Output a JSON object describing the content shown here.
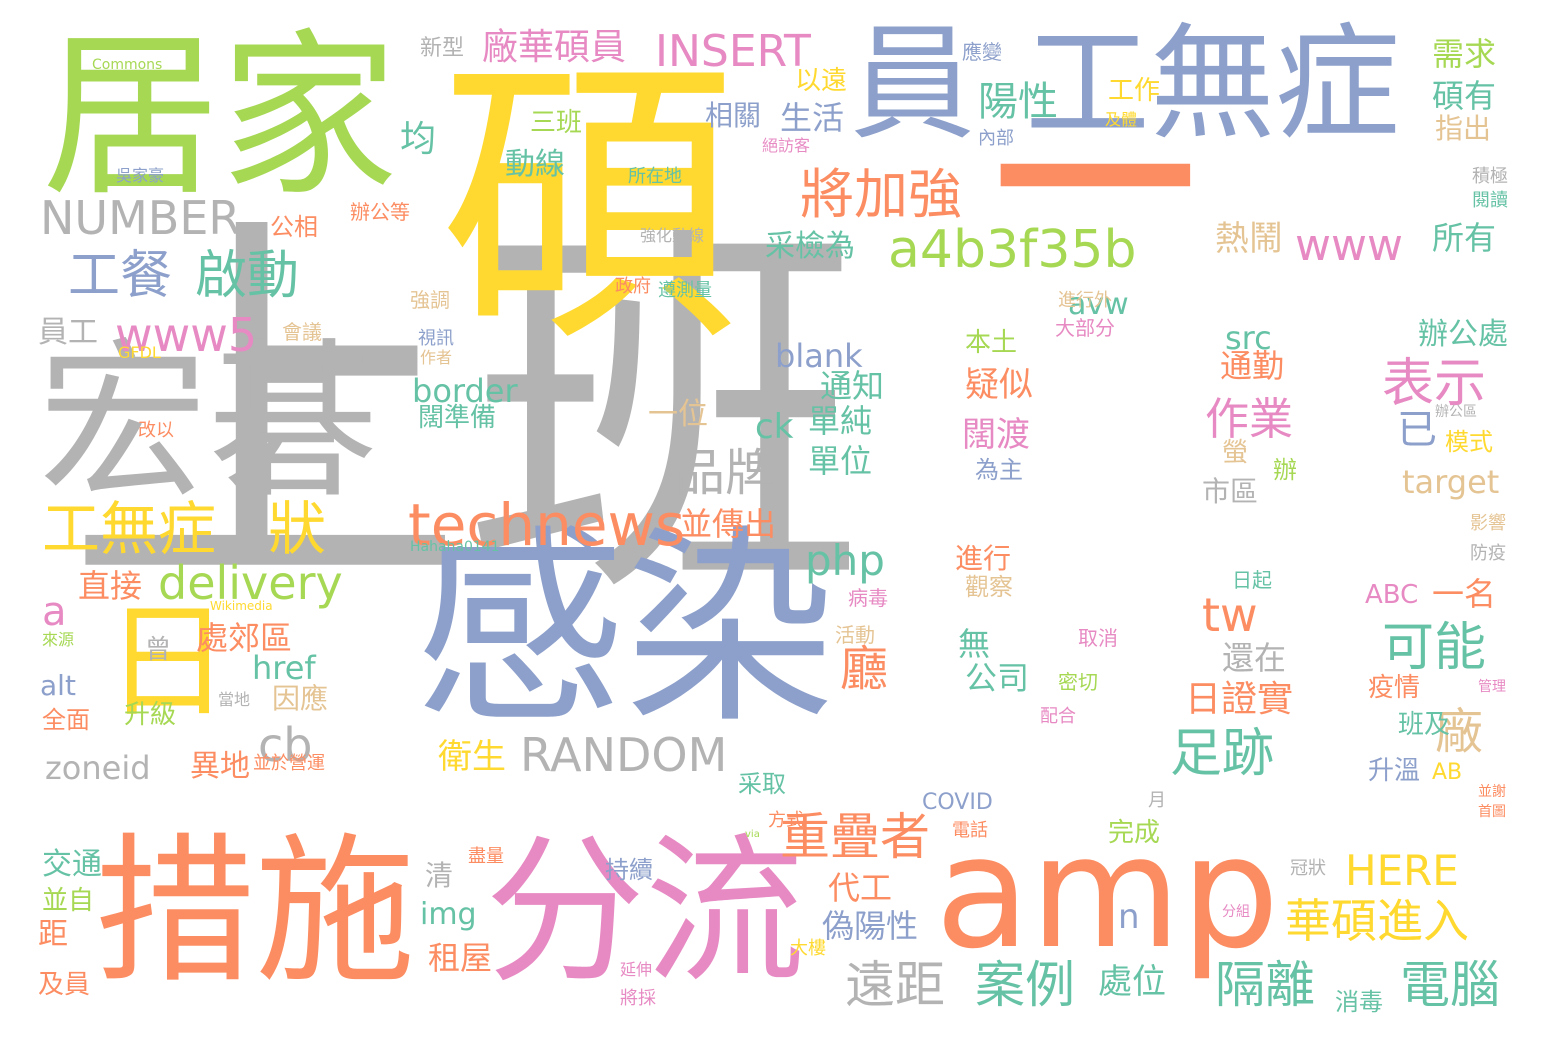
{
  "palette": {
    "gray": "#b3b3b3",
    "yellow": "#ffd92f",
    "blue": "#8da0cb",
    "green": "#a6d854",
    "orange": "#fc8d62",
    "pink": "#e78ac3",
    "teal": "#66c2a5",
    "tan": "#e5c494"
  },
  "words": [
    {
      "text": "上班",
      "color": "gray"
    },
    {
      "text": "碩",
      "color": "yellow"
    },
    {
      "text": "感染",
      "color": "blue"
    },
    {
      "text": "一",
      "color": "orange"
    },
    {
      "text": "居家",
      "color": "green"
    },
    {
      "text": "宏碁",
      "color": "gray"
    },
    {
      "text": "措施",
      "color": "orange"
    },
    {
      "text": "分流",
      "color": "pink"
    },
    {
      "text": "amp",
      "color": "orange"
    },
    {
      "text": "員",
      "color": "blue"
    },
    {
      "text": "工無症",
      "color": "blue"
    },
    {
      "text": "日",
      "color": "yellow"
    },
    {
      "text": "technews",
      "color": "orange"
    },
    {
      "text": "a4b3f35b",
      "color": "green"
    },
    {
      "text": "將加強",
      "color": "orange"
    },
    {
      "text": "工無症",
      "color": "yellow"
    },
    {
      "text": "狀",
      "color": "yellow"
    },
    {
      "text": "NUMBER",
      "color": "gray"
    },
    {
      "text": "www5",
      "color": "pink"
    },
    {
      "text": "工餐",
      "color": "blue"
    },
    {
      "text": "啟動",
      "color": "teal"
    },
    {
      "text": "delivery",
      "color": "green"
    },
    {
      "text": "RANDOM",
      "color": "gray"
    },
    {
      "text": "INSERT",
      "color": "pink"
    },
    {
      "text": "廠華碩員",
      "color": "pink"
    },
    {
      "text": "www",
      "color": "pink"
    },
    {
      "text": "品牌",
      "color": "gray"
    },
    {
      "text": "表示",
      "color": "pink"
    },
    {
      "text": "足跡",
      "color": "teal"
    },
    {
      "text": "可能",
      "color": "teal"
    },
    {
      "text": "重疊者",
      "color": "orange"
    },
    {
      "text": "遠距",
      "color": "gray"
    },
    {
      "text": "案例",
      "color": "teal"
    },
    {
      "text": "華碩進入",
      "color": "yellow"
    },
    {
      "text": "電腦",
      "color": "teal"
    },
    {
      "text": "隔離",
      "color": "teal"
    },
    {
      "text": "HERE",
      "color": "yellow"
    },
    {
      "text": "陽性",
      "color": "teal"
    },
    {
      "text": "需求",
      "color": "green"
    },
    {
      "text": "碩有",
      "color": "teal"
    },
    {
      "text": "php",
      "color": "teal"
    },
    {
      "text": "tw",
      "color": "orange"
    },
    {
      "text": "cb",
      "color": "gray"
    },
    {
      "text": "a",
      "color": "pink"
    },
    {
      "text": "zoneid",
      "color": "gray"
    },
    {
      "text": "作業",
      "color": "pink"
    },
    {
      "text": "所有",
      "color": "teal"
    },
    {
      "text": "生活",
      "color": "blue"
    },
    {
      "text": "均",
      "color": "teal"
    },
    {
      "text": "動線",
      "color": "teal"
    },
    {
      "text": "相關",
      "color": "blue"
    },
    {
      "text": "三班",
      "color": "green"
    },
    {
      "text": "以遠",
      "color": "yellow"
    },
    {
      "text": "新型",
      "color": "gray"
    },
    {
      "text": "熱鬧",
      "color": "tan"
    },
    {
      "text": "采檢為",
      "color": "teal"
    },
    {
      "text": "avw",
      "color": "teal"
    },
    {
      "text": "src",
      "color": "teal"
    },
    {
      "text": "本土",
      "color": "green"
    },
    {
      "text": "疑似",
      "color": "orange"
    },
    {
      "text": "闊渡",
      "color": "pink"
    },
    {
      "text": "為主",
      "color": "blue"
    },
    {
      "text": "通知",
      "color": "teal"
    },
    {
      "text": "單純",
      "color": "teal"
    },
    {
      "text": "單位",
      "color": "teal"
    },
    {
      "text": "一位",
      "color": "tan"
    },
    {
      "text": "blank",
      "color": "blue"
    },
    {
      "text": "border",
      "color": "teal"
    },
    {
      "text": "闊準備",
      "color": "teal"
    },
    {
      "text": "ck",
      "color": "teal"
    },
    {
      "text": "並傳出",
      "color": "orange"
    },
    {
      "text": "直接",
      "color": "orange"
    },
    {
      "text": "處郊區",
      "color": "orange"
    },
    {
      "text": "href",
      "color": "teal"
    },
    {
      "text": "alt",
      "color": "blue"
    },
    {
      "text": "因應",
      "color": "tan"
    },
    {
      "text": "異地",
      "color": "orange"
    },
    {
      "text": "全面",
      "color": "orange"
    },
    {
      "text": "升級",
      "color": "green"
    },
    {
      "text": "曾",
      "color": "gray"
    },
    {
      "text": "廳",
      "color": "orange"
    },
    {
      "text": "衛生",
      "color": "yellow"
    },
    {
      "text": "日證實",
      "color": "orange"
    },
    {
      "text": "還在",
      "color": "gray"
    },
    {
      "text": "廠",
      "color": "tan"
    },
    {
      "text": "已",
      "color": "blue"
    },
    {
      "text": "通勤",
      "color": "orange"
    },
    {
      "text": "市區",
      "color": "gray"
    },
    {
      "text": "辦公處",
      "color": "teal"
    },
    {
      "text": "target",
      "color": "tan"
    },
    {
      "text": "模式",
      "color": "yellow"
    },
    {
      "text": "一名",
      "color": "orange"
    },
    {
      "text": "ABC",
      "color": "pink"
    },
    {
      "text": "疫情",
      "color": "orange"
    },
    {
      "text": "升溫",
      "color": "blue"
    },
    {
      "text": "班及",
      "color": "teal"
    },
    {
      "text": "AB",
      "color": "yellow"
    },
    {
      "text": "進行",
      "color": "orange"
    },
    {
      "text": "觀察",
      "color": "tan"
    },
    {
      "text": "無",
      "color": "teal"
    },
    {
      "text": "公司",
      "color": "teal"
    },
    {
      "text": "代工",
      "color": "orange"
    },
    {
      "text": "偽陽性",
      "color": "blue"
    },
    {
      "text": "租屋",
      "color": "orange"
    },
    {
      "text": "img",
      "color": "teal"
    },
    {
      "text": "清",
      "color": "gray"
    },
    {
      "text": "n",
      "color": "blue"
    },
    {
      "text": "處位",
      "color": "teal"
    },
    {
      "text": "交通",
      "color": "teal"
    },
    {
      "text": "並自",
      "color": "green"
    },
    {
      "text": "距",
      "color": "orange"
    },
    {
      "text": "及員",
      "color": "orange"
    },
    {
      "text": "員工",
      "color": "gray"
    },
    {
      "text": "公相",
      "color": "orange"
    },
    {
      "text": "指出",
      "color": "tan"
    },
    {
      "text": "工作",
      "color": "yellow"
    },
    {
      "text": "及體",
      "color": "yellow"
    },
    {
      "text": "內部",
      "color": "blue"
    },
    {
      "text": "應變",
      "color": "blue"
    },
    {
      "text": "消毒",
      "color": "teal"
    },
    {
      "text": "完成",
      "color": "green"
    },
    {
      "text": "COVID",
      "color": "blue"
    },
    {
      "text": "持續",
      "color": "blue"
    },
    {
      "text": "采取",
      "color": "teal"
    },
    {
      "text": "方式",
      "color": "orange"
    },
    {
      "text": "活動",
      "color": "tan"
    },
    {
      "text": "病毒",
      "color": "pink"
    },
    {
      "text": "取消",
      "color": "pink"
    },
    {
      "text": "密切",
      "color": "green"
    },
    {
      "text": "配合",
      "color": "pink"
    },
    {
      "text": "大部分",
      "color": "pink"
    },
    {
      "text": "進行外",
      "color": "tan"
    },
    {
      "text": "政府",
      "color": "orange"
    },
    {
      "text": "遵測量",
      "color": "teal"
    },
    {
      "text": "所在地",
      "color": "teal"
    },
    {
      "text": "強化動線",
      "color": "gray"
    },
    {
      "text": "辦公等",
      "color": "orange"
    },
    {
      "text": "吳家豪",
      "color": "blue"
    },
    {
      "text": "Commons",
      "color": "green"
    },
    {
      "text": "強調",
      "color": "tan"
    },
    {
      "text": "會議",
      "color": "tan"
    },
    {
      "text": "視訊",
      "color": "blue"
    },
    {
      "text": "作者",
      "color": "tan"
    },
    {
      "text": "GFDL",
      "color": "yellow"
    },
    {
      "text": "改以",
      "color": "orange"
    },
    {
      "text": "Hahaha0141",
      "color": "teal"
    },
    {
      "text": "Wikimedia",
      "color": "yellow"
    },
    {
      "text": "來源",
      "color": "green"
    },
    {
      "text": "當地",
      "color": "gray"
    },
    {
      "text": "並於營運",
      "color": "orange"
    },
    {
      "text": "電話",
      "color": "orange"
    },
    {
      "text": "月",
      "color": "gray"
    },
    {
      "text": "via",
      "color": "green"
    },
    {
      "text": "盡量",
      "color": "orange"
    },
    {
      "text": "延伸",
      "color": "pink"
    },
    {
      "text": "將採",
      "color": "pink"
    },
    {
      "text": "大樓",
      "color": "yellow"
    },
    {
      "text": "冠狀",
      "color": "gray"
    },
    {
      "text": "分組",
      "color": "pink"
    },
    {
      "text": "並謝",
      "color": "orange"
    },
    {
      "text": "首圖",
      "color": "orange"
    },
    {
      "text": "管理",
      "color": "pink"
    },
    {
      "text": "日起",
      "color": "teal"
    },
    {
      "text": "防疫",
      "color": "gray"
    },
    {
      "text": "影響",
      "color": "tan"
    },
    {
      "text": "辦公區",
      "color": "gray"
    },
    {
      "text": "螢",
      "color": "tan"
    },
    {
      "text": "辦",
      "color": "green"
    },
    {
      "text": "積極",
      "color": "gray"
    },
    {
      "text": "閱讀",
      "color": "teal"
    },
    {
      "text": "絕訪客",
      "color": "pink"
    }
  ]
}
